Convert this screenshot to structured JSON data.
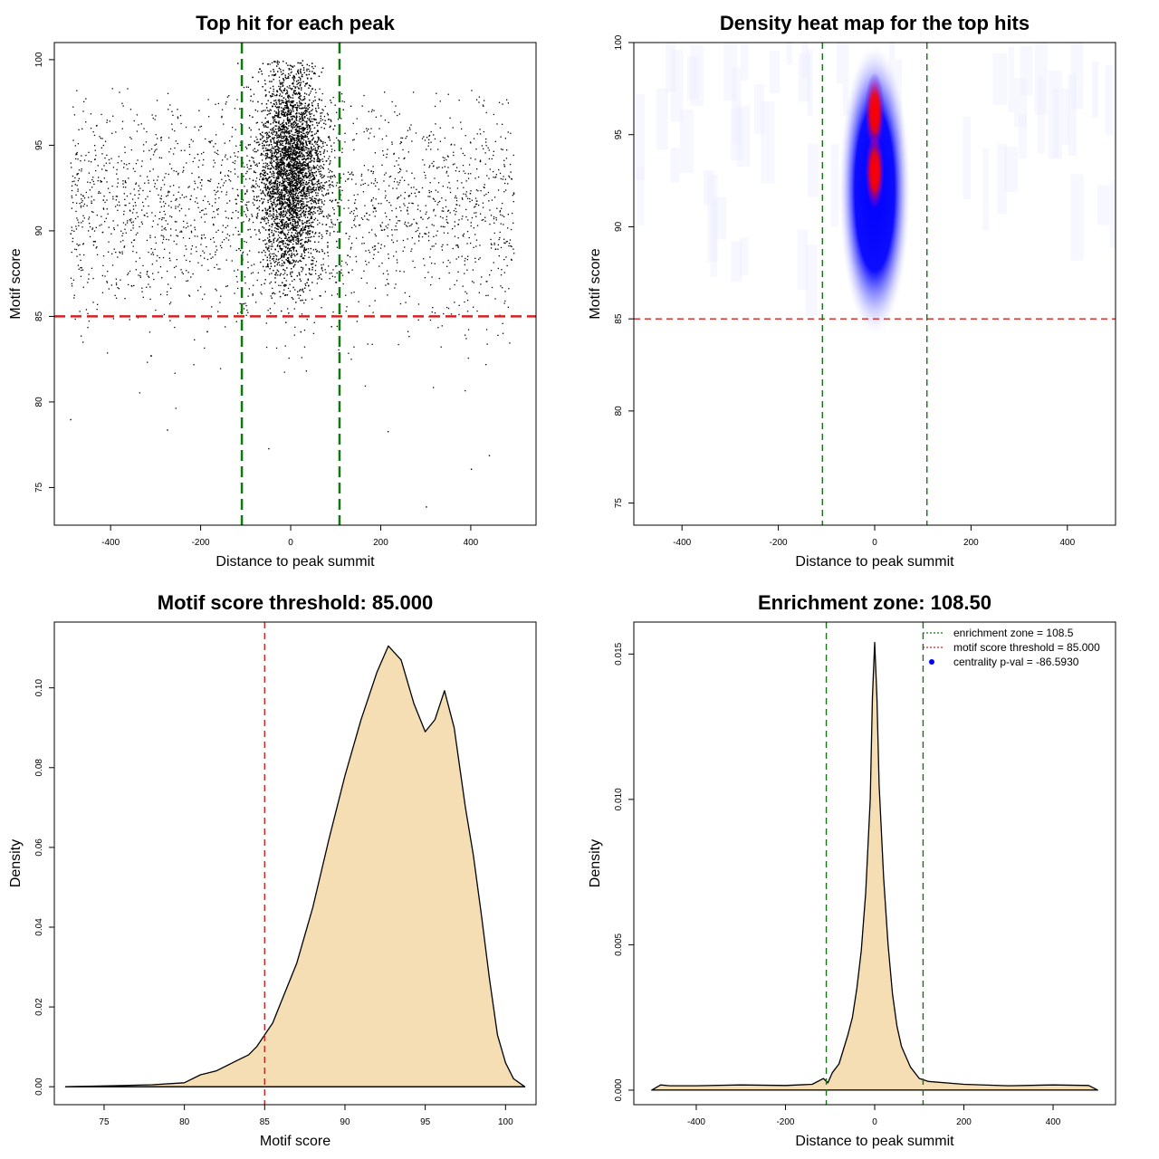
{
  "chart_data": [
    {
      "type": "scatter",
      "title": "Top hit for each peak",
      "xlabel": "Distance to peak summit",
      "ylabel": "Motif score",
      "xlim": [
        -525,
        545
      ],
      "ylim": [
        72.8,
        101
      ],
      "xticks": [
        -400,
        -200,
        0,
        200,
        400
      ],
      "xtick_labels": [
        "-400",
        "-200",
        "0",
        "200",
        "400"
      ],
      "yticks": [
        75,
        80,
        85,
        90,
        95,
        100
      ],
      "ytick_labels": [
        "75",
        "80",
        "85",
        "90",
        "95",
        "100"
      ],
      "grid": false,
      "reference_lines": [
        {
          "axis": "y",
          "value": 85,
          "color": "#d62020",
          "style": "dashed"
        },
        {
          "axis": "x",
          "value": -108.5,
          "color": "#117711",
          "style": "dashed"
        },
        {
          "axis": "x",
          "value": 108.5,
          "color": "#117711",
          "style": "dashed"
        }
      ],
      "points_summary": {
        "central_cluster": {
          "x_center": 0,
          "x_sd": 35,
          "y_center": 93.5,
          "y_sd": 3.0,
          "y_range": [
            84,
            100
          ],
          "approx_count": 6000
        },
        "background": {
          "x_range": [
            -490,
            495
          ],
          "y_center": 91.5,
          "y_sd": 3.5,
          "y_range": [
            79,
            98.5
          ],
          "approx_count": 2400
        },
        "outliers": [
          [
            -490,
            79.0
          ],
          [
            300,
            73.9
          ],
          [
            400,
            76.1
          ],
          [
            440,
            76.9
          ],
          [
            -275,
            78.4
          ],
          [
            215,
            78.3
          ],
          [
            -50,
            77.3
          ]
        ]
      },
      "point_color": "#000000"
    },
    {
      "type": "heatmap",
      "title": "Density heat map for the top hits",
      "xlabel": "Distance to peak summit",
      "ylabel": "Motif score",
      "xlim": [
        -500,
        500
      ],
      "ylim": [
        73.8,
        100
      ],
      "xticks": [
        -400,
        -200,
        0,
        200,
        400
      ],
      "xtick_labels": [
        "-400",
        "-200",
        "0",
        "200",
        "400"
      ],
      "yticks": [
        75,
        80,
        85,
        90,
        95,
        100
      ],
      "ytick_labels": [
        "75",
        "80",
        "85",
        "90",
        "95",
        "100"
      ],
      "grid": false,
      "colorscale": [
        "#ffffff",
        "#0000ff",
        "#ff0000"
      ],
      "hotspot": {
        "x_center": 0,
        "x_sd": 9,
        "y_peak_values": [
          96.2,
          93.0
        ],
        "y_range": [
          84,
          100
        ]
      },
      "reference_lines": [
        {
          "axis": "y",
          "value": 85,
          "color": "#d62020",
          "style": "dashed"
        },
        {
          "axis": "x",
          "value": -108.5,
          "color": "#117711",
          "style": "dashed"
        },
        {
          "axis": "x",
          "value": 108.5,
          "color": "#117711",
          "style": "dashed"
        }
      ]
    },
    {
      "type": "area",
      "title": "Motif score threshold: 85.000",
      "xlabel": "Motif score",
      "ylabel": "Density",
      "xlim": [
        71.9,
        101.9
      ],
      "ylim": [
        -0.0045,
        0.1165
      ],
      "xticks": [
        75,
        80,
        85,
        90,
        95,
        100
      ],
      "xtick_labels": [
        "75",
        "80",
        "85",
        "90",
        "95",
        "100"
      ],
      "yticks": [
        0,
        0.02,
        0.04,
        0.06,
        0.08,
        0.1
      ],
      "ytick_labels": [
        "0.00",
        "0.02",
        "0.04",
        "0.06",
        "0.08",
        "0.10"
      ],
      "grid": false,
      "fill_color": "#f5deb3",
      "series": [
        {
          "x": [
            72.6,
            76,
            78,
            80,
            81,
            82,
            83,
            84,
            84.5,
            85,
            85.5,
            86,
            87,
            88,
            89,
            90,
            91,
            92,
            92.7,
            93.5,
            94.3,
            95,
            95.6,
            96.2,
            96.8,
            97.5,
            98,
            98.5,
            99,
            99.5,
            100,
            100.5,
            101.2
          ],
          "y": [
            0.0,
            0.0003,
            0.0005,
            0.001,
            0.003,
            0.004,
            0.006,
            0.008,
            0.01,
            0.013,
            0.016,
            0.021,
            0.031,
            0.045,
            0.062,
            0.078,
            0.092,
            0.104,
            0.1105,
            0.107,
            0.096,
            0.089,
            0.092,
            0.0993,
            0.09,
            0.07,
            0.058,
            0.043,
            0.027,
            0.013,
            0.006,
            0.002,
            0.0
          ]
        }
      ],
      "reference_lines": [
        {
          "axis": "x",
          "value": 85,
          "color": "#d62020",
          "style": "dashed"
        }
      ]
    },
    {
      "type": "area",
      "title": "Enrichment zone: 108.50",
      "xlabel": "Distance to peak summit",
      "ylabel": "Density",
      "xlim": [
        -540,
        540
      ],
      "ylim": [
        -0.0005,
        0.0161
      ],
      "xticks": [
        -400,
        -200,
        0,
        200,
        400
      ],
      "xtick_labels": [
        "-400",
        "-200",
        "0",
        "200",
        "400"
      ],
      "yticks": [
        0,
        0.005,
        0.01,
        0.015
      ],
      "ytick_labels": [
        "0.000",
        "0.005",
        "0.010",
        "0.015"
      ],
      "grid": false,
      "fill_color": "#f5deb3",
      "series": [
        {
          "x": [
            -500,
            -480,
            -460,
            -400,
            -300,
            -200,
            -140,
            -115,
            -105,
            -95,
            -80,
            -70,
            -60,
            -50,
            -40,
            -30,
            -20,
            -10,
            -5,
            0,
            5,
            10,
            20,
            30,
            40,
            50,
            60,
            80,
            100,
            120,
            200,
            300,
            400,
            480,
            500
          ],
          "y": [
            0.0,
            0.00018,
            0.00015,
            0.00015,
            0.00018,
            0.00016,
            0.0002,
            0.0004,
            0.00025,
            0.0006,
            0.0009,
            0.0014,
            0.0019,
            0.0025,
            0.0035,
            0.0048,
            0.0068,
            0.01,
            0.0135,
            0.0154,
            0.0135,
            0.0105,
            0.0073,
            0.005,
            0.0033,
            0.0022,
            0.0015,
            0.0008,
            0.0004,
            0.0003,
            0.0002,
            0.00015,
            0.00018,
            0.00016,
            0.0
          ]
        }
      ],
      "reference_lines": [
        {
          "axis": "x",
          "value": -108.5,
          "color": "#117711",
          "style": "dashed"
        },
        {
          "axis": "x",
          "value": 108.5,
          "color": "#117711",
          "style": "dashed"
        }
      ],
      "legend": {
        "position": "top-right",
        "items": [
          {
            "label": "enrichment zone = 108.5",
            "color": "#117711",
            "style": "dotted-line"
          },
          {
            "label": "motif score threshold = 85.000",
            "color": "#d62020",
            "style": "dotted-line"
          },
          {
            "label": "centrality p-val = -86.5930",
            "color": "#0000ff",
            "style": "point"
          }
        ]
      }
    }
  ]
}
